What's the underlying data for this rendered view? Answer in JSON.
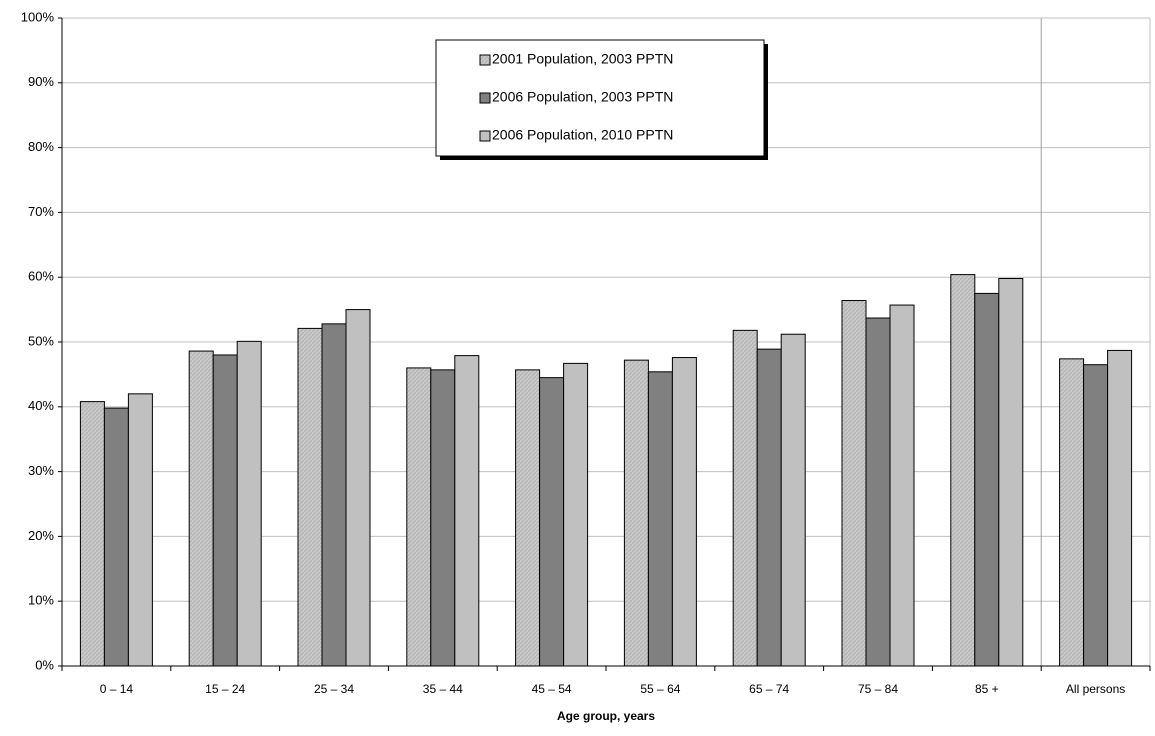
{
  "chart_data": {
    "type": "bar",
    "x_label": "Age group, years",
    "categories": [
      "0 – 14",
      "15 – 24",
      "25 – 34",
      "35 – 44",
      "45 – 54",
      "55 – 64",
      "65 – 74",
      "75 – 84",
      "85 +",
      "All persons"
    ],
    "series": [
      {
        "name": "2001 Population, 2003 PPTN",
        "color": "#c0c0c0",
        "values": [
          40.8,
          48.6,
          52.1,
          46.0,
          45.7,
          47.2,
          51.8,
          56.4,
          60.4,
          47.4
        ]
      },
      {
        "name": "2006 Population, 2003 PPTN",
        "color": "#808080",
        "values": [
          39.8,
          48.0,
          52.8,
          45.7,
          44.5,
          45.4,
          48.9,
          53.7,
          57.5,
          46.5
        ]
      },
      {
        "name": "2006 Population, 2010 PPTN",
        "color": "#c0c0c0",
        "values": [
          42.0,
          50.1,
          55.0,
          47.9,
          46.7,
          47.6,
          51.2,
          55.7,
          59.8,
          48.7
        ]
      }
    ],
    "ylim": [
      0,
      100
    ],
    "yticks": [
      {
        "value": 0,
        "label": "0%"
      },
      {
        "value": 10,
        "label": "10%"
      },
      {
        "value": 20,
        "label": "20%"
      },
      {
        "value": 30,
        "label": "30%"
      },
      {
        "value": 40,
        "label": "40%"
      },
      {
        "value": 50,
        "label": "50%"
      },
      {
        "value": 60,
        "label": "60%"
      },
      {
        "value": 70,
        "label": "70%"
      },
      {
        "value": 80,
        "label": "80%"
      },
      {
        "value": 90,
        "label": "90%"
      },
      {
        "value": 100,
        "label": "100%"
      }
    ],
    "grid": true
  }
}
